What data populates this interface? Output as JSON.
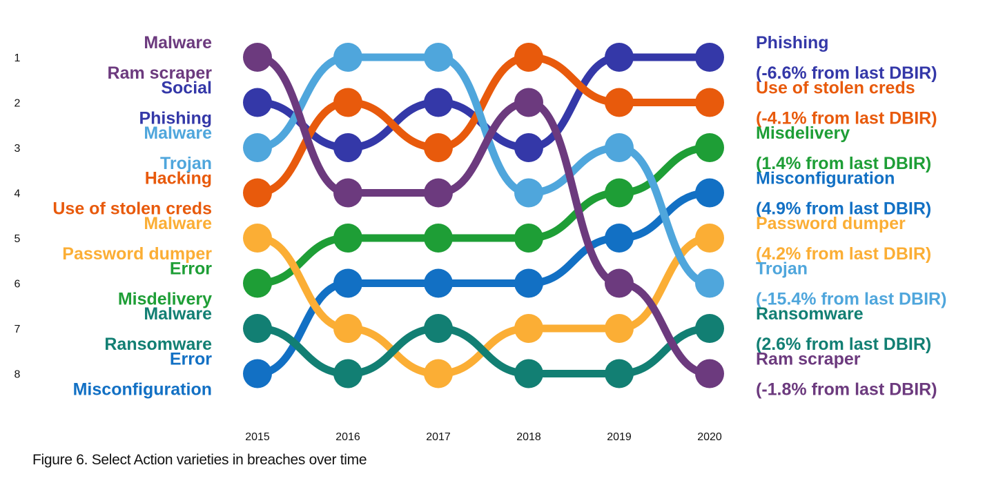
{
  "caption": "Figure 6. Select Action varieties in breaches over time",
  "chart_data": {
    "type": "bump",
    "x": [
      "2015",
      "2016",
      "2017",
      "2018",
      "2019",
      "2020"
    ],
    "ranks": [
      1,
      2,
      3,
      4,
      5,
      6,
      7,
      8
    ],
    "series": [
      {
        "name": "Phishing",
        "action": "Social",
        "color": "#3438a8",
        "ranks": [
          2,
          3,
          2,
          3,
          1,
          1
        ],
        "change": "(-6.6% from last DBIR)"
      },
      {
        "name": "Use of stolen creds",
        "action": "Hacking",
        "color": "#e85a0c",
        "ranks": [
          4,
          2,
          3,
          1,
          2,
          2
        ],
        "change": "(-4.1% from last DBIR)"
      },
      {
        "name": "Misdelivery",
        "action": "Error",
        "color": "#1e9e36",
        "ranks": [
          6,
          5,
          5,
          5,
          4,
          3
        ],
        "change": "(1.4% from last DBIR)"
      },
      {
        "name": "Misconfiguration",
        "action": "Error",
        "color": "#1270c4",
        "ranks": [
          8,
          6,
          6,
          6,
          5,
          4
        ],
        "change": "(4.9% from last DBIR)"
      },
      {
        "name": "Password dumper",
        "action": "Malware",
        "color": "#fbae35",
        "ranks": [
          5,
          7,
          8,
          7,
          7,
          5
        ],
        "change": "(4.2% from last DBIR)"
      },
      {
        "name": "Trojan",
        "action": "Malware",
        "color": "#4fa6dc",
        "ranks": [
          3,
          1,
          1,
          4,
          3,
          6
        ],
        "change": "(-15.4% from last DBIR)"
      },
      {
        "name": "Ransomware",
        "action": "Malware",
        "color": "#127f73",
        "ranks": [
          7,
          8,
          7,
          8,
          8,
          7
        ],
        "change": "(2.6% from last DBIR)"
      },
      {
        "name": "Ram scraper",
        "action": "Malware",
        "color": "#6c3a7e",
        "ranks": [
          1,
          4,
          4,
          2,
          6,
          8
        ],
        "change": "(-1.8% from last DBIR)"
      }
    ]
  }
}
